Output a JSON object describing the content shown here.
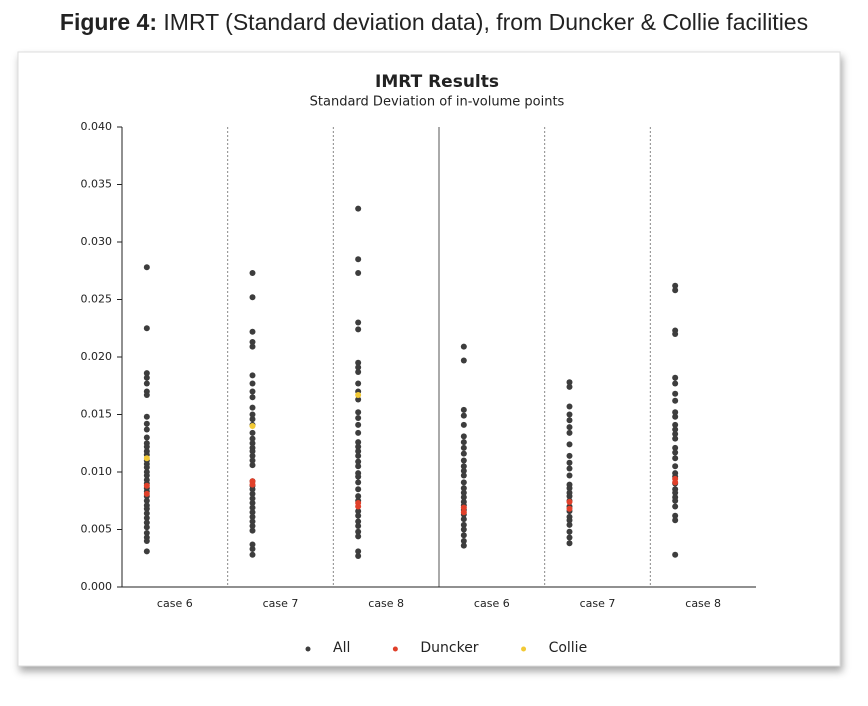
{
  "figure_caption": {
    "label": "Figure 4:",
    "text": "IMRT (Standard deviation data), from Duncker & Collie facilities"
  },
  "chart_data": {
    "type": "strip",
    "title": "IMRT Results",
    "subtitle": "Standard Deviation of in-volume points",
    "categories": [
      "case 6",
      "case 7",
      "case 8",
      "case 6",
      "case 7",
      "case 8"
    ],
    "ylim": [
      0,
      0.04
    ],
    "yticks": [
      {
        "value": 0,
        "label": "0.000"
      },
      0.005,
      {
        "value": 0.01,
        "label": "0.010"
      },
      0.015,
      {
        "value": 0.02,
        "label": "0.020"
      },
      0.025,
      {
        "value": 0.03,
        "label": "0.030"
      },
      0.035,
      {
        "value": 0.04,
        "label": "0.040"
      }
    ],
    "legend_position": "bottom",
    "series": [
      {
        "name": "All",
        "color": "#3d3d3d",
        "values": [
          [
            0.0278,
            0.0225,
            0.0186,
            0.0182,
            0.0177,
            0.017,
            0.0167,
            0.0148,
            0.0142,
            0.0137,
            0.013,
            0.0125,
            0.0122,
            0.0118,
            0.0115,
            0.011,
            0.0107,
            0.0104,
            0.01,
            0.0097,
            0.0093,
            0.009,
            0.0086,
            0.0083,
            0.0079,
            0.0075,
            0.0071,
            0.0068,
            0.0064,
            0.006,
            0.0056,
            0.0052,
            0.0047,
            0.0043,
            0.004,
            0.0031
          ],
          [
            0.0273,
            0.0252,
            0.0222,
            0.0213,
            0.0209,
            0.0184,
            0.0177,
            0.017,
            0.0165,
            0.0156,
            0.015,
            0.0146,
            0.0141,
            0.0134,
            0.0129,
            0.0125,
            0.0121,
            0.0118,
            0.0114,
            0.011,
            0.0106,
            0.0092,
            0.0088,
            0.0085,
            0.0081,
            0.0077,
            0.0073,
            0.0069,
            0.0065,
            0.0061,
            0.0057,
            0.0053,
            0.0049,
            0.0037,
            0.0033,
            0.0028
          ],
          [
            0.0329,
            0.0285,
            0.0273,
            0.023,
            0.0224,
            0.0195,
            0.0191,
            0.0187,
            0.0177,
            0.017,
            0.0163,
            0.0152,
            0.0147,
            0.0141,
            0.0134,
            0.0126,
            0.0122,
            0.0118,
            0.0114,
            0.0109,
            0.0105,
            0.0099,
            0.0096,
            0.0091,
            0.0085,
            0.0079,
            0.0075,
            0.0066,
            0.0062,
            0.0057,
            0.0053,
            0.0048,
            0.0044,
            0.0031,
            0.0027
          ],
          [
            0.0209,
            0.0197,
            0.0154,
            0.0149,
            0.0141,
            0.0131,
            0.0126,
            0.0121,
            0.0116,
            0.011,
            0.0105,
            0.0101,
            0.0097,
            0.0091,
            0.0086,
            0.0082,
            0.0078,
            0.0074,
            0.0071,
            0.0067,
            0.0063,
            0.0059,
            0.0054,
            0.005,
            0.0045,
            0.004,
            0.0036
          ],
          [
            0.0178,
            0.0174,
            0.0157,
            0.015,
            0.0145,
            0.0139,
            0.0134,
            0.0124,
            0.0114,
            0.0108,
            0.0103,
            0.0097,
            0.0089,
            0.0086,
            0.0082,
            0.0079,
            0.0075,
            0.007,
            0.0066,
            0.0061,
            0.0058,
            0.0054,
            0.0048,
            0.0043,
            0.0038
          ],
          [
            0.0262,
            0.0258,
            0.0223,
            0.022,
            0.0182,
            0.0177,
            0.0168,
            0.0162,
            0.0152,
            0.0148,
            0.0141,
            0.0137,
            0.0133,
            0.0129,
            0.0121,
            0.0117,
            0.0112,
            0.0105,
            0.0099,
            0.0096,
            0.009,
            0.0085,
            0.0082,
            0.0078,
            0.0075,
            0.007,
            0.0062,
            0.0058,
            0.0028
          ]
        ]
      },
      {
        "name": "Duncker",
        "color": "#e0402a",
        "values": [
          [
            0.0088,
            0.0081
          ],
          [
            0.0092,
            0.0089
          ],
          [
            0.0073,
            0.007
          ],
          [
            0.0069,
            0.0065
          ],
          [
            0.0074,
            0.0068
          ],
          [
            0.0094,
            0.0091
          ]
        ]
      },
      {
        "name": "Collie",
        "color": "#f2c935",
        "values": [
          [
            0.0112
          ],
          [
            0.014
          ],
          [
            0.0167
          ],
          [],
          [],
          []
        ]
      }
    ]
  }
}
